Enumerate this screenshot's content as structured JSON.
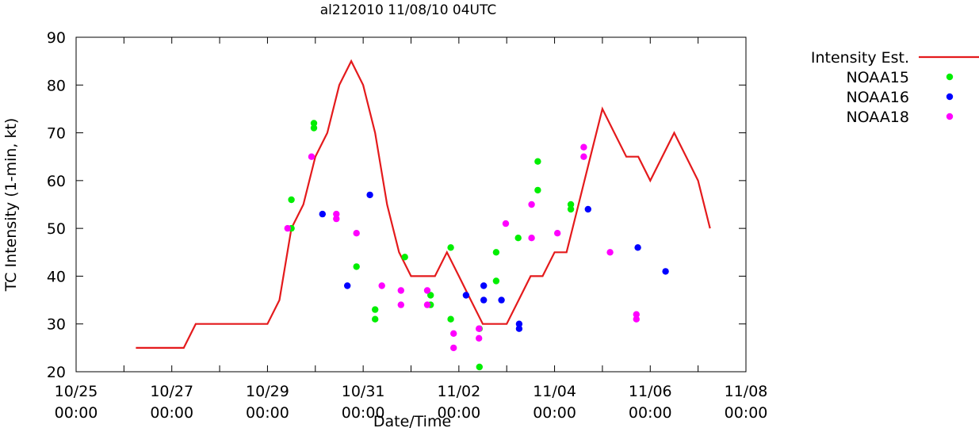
{
  "chart_data": {
    "type": "line",
    "title": "al212010 11/08/10 04UTC",
    "xlabel": "Date/Time",
    "ylabel": "TC Intensity (1-min, kt)",
    "x_unit": "day",
    "xlim": [
      0,
      14
    ],
    "ylim": [
      20,
      90
    ],
    "yticks": [
      20,
      30,
      40,
      50,
      60,
      70,
      80,
      90
    ],
    "xticks": [
      {
        "x": 0,
        "line1": "10/25",
        "line2": "00:00"
      },
      {
        "x": 2,
        "line1": "10/27",
        "line2": "00:00"
      },
      {
        "x": 4,
        "line1": "10/29",
        "line2": "00:00"
      },
      {
        "x": 6,
        "line1": "10/31",
        "line2": "00:00"
      },
      {
        "x": 8,
        "line1": "11/02",
        "line2": "00:00"
      },
      {
        "x": 10,
        "line1": "11/04",
        "line2": "00:00"
      },
      {
        "x": 12,
        "line1": "11/06",
        "line2": "00:00"
      },
      {
        "x": 14,
        "line1": "11/08",
        "line2": "00:00"
      }
    ],
    "grid": false,
    "legend_position": "outside-right",
    "series": [
      {
        "name": "Intensity Est.",
        "kind": "line",
        "color": "#e41a1c",
        "points": [
          [
            1.25,
            25
          ],
          [
            2.25,
            25
          ],
          [
            2.5,
            30
          ],
          [
            4.0,
            30
          ],
          [
            4.25,
            35
          ],
          [
            4.5,
            50
          ],
          [
            4.75,
            55
          ],
          [
            5.0,
            65
          ],
          [
            5.25,
            70
          ],
          [
            5.5,
            80
          ],
          [
            5.75,
            85
          ],
          [
            6.0,
            80
          ],
          [
            6.25,
            70
          ],
          [
            6.5,
            55
          ],
          [
            6.75,
            45
          ],
          [
            7.0,
            40
          ],
          [
            7.25,
            40
          ],
          [
            7.5,
            40
          ],
          [
            7.75,
            45
          ],
          [
            8.0,
            40
          ],
          [
            8.25,
            35
          ],
          [
            8.5,
            30
          ],
          [
            8.75,
            30
          ],
          [
            9.0,
            30
          ],
          [
            9.25,
            35
          ],
          [
            9.5,
            40
          ],
          [
            9.75,
            40
          ],
          [
            10.0,
            45
          ],
          [
            10.25,
            45
          ],
          [
            10.5,
            55
          ],
          [
            10.75,
            65
          ],
          [
            11.0,
            75
          ],
          [
            11.25,
            70
          ],
          [
            11.5,
            65
          ],
          [
            11.75,
            65
          ],
          [
            12.0,
            60
          ],
          [
            12.5,
            70
          ],
          [
            12.75,
            65
          ],
          [
            13.0,
            60
          ],
          [
            13.25,
            50
          ]
        ]
      },
      {
        "name": "NOAA15",
        "kind": "scatter",
        "color": "#00ee00",
        "points": [
          [
            4.5,
            56
          ],
          [
            4.5,
            50
          ],
          [
            4.97,
            72
          ],
          [
            4.97,
            71
          ],
          [
            5.86,
            42
          ],
          [
            6.25,
            33
          ],
          [
            6.25,
            31
          ],
          [
            6.87,
            44
          ],
          [
            7.41,
            36
          ],
          [
            7.41,
            34
          ],
          [
            7.83,
            46
          ],
          [
            7.83,
            31
          ],
          [
            8.43,
            29
          ],
          [
            8.43,
            21
          ],
          [
            8.78,
            45
          ],
          [
            8.78,
            39
          ],
          [
            9.24,
            48
          ],
          [
            9.65,
            64
          ],
          [
            9.65,
            58
          ],
          [
            10.34,
            55
          ],
          [
            10.34,
            54
          ]
        ]
      },
      {
        "name": "NOAA16",
        "kind": "scatter",
        "color": "#0000ff",
        "points": [
          [
            5.15,
            53
          ],
          [
            5.67,
            38
          ],
          [
            6.14,
            57
          ],
          [
            8.15,
            36
          ],
          [
            8.52,
            38
          ],
          [
            8.52,
            35
          ],
          [
            8.89,
            35
          ],
          [
            9.26,
            30
          ],
          [
            9.26,
            29
          ],
          [
            10.7,
            54
          ],
          [
            11.74,
            46
          ],
          [
            12.32,
            41
          ]
        ]
      },
      {
        "name": "NOAA18",
        "kind": "scatter",
        "color": "#ff00ff",
        "points": [
          [
            4.42,
            50
          ],
          [
            4.92,
            65
          ],
          [
            5.44,
            53
          ],
          [
            5.44,
            52
          ],
          [
            5.86,
            49
          ],
          [
            6.39,
            38
          ],
          [
            6.79,
            37
          ],
          [
            6.79,
            34
          ],
          [
            7.34,
            37
          ],
          [
            7.34,
            34
          ],
          [
            7.89,
            28
          ],
          [
            7.89,
            25
          ],
          [
            8.42,
            29
          ],
          [
            8.42,
            27
          ],
          [
            8.98,
            51
          ],
          [
            9.52,
            55
          ],
          [
            9.52,
            48
          ],
          [
            10.06,
            49
          ],
          [
            10.61,
            67
          ],
          [
            10.61,
            65
          ],
          [
            11.16,
            45
          ],
          [
            11.71,
            32
          ],
          [
            11.71,
            31
          ]
        ]
      }
    ]
  }
}
